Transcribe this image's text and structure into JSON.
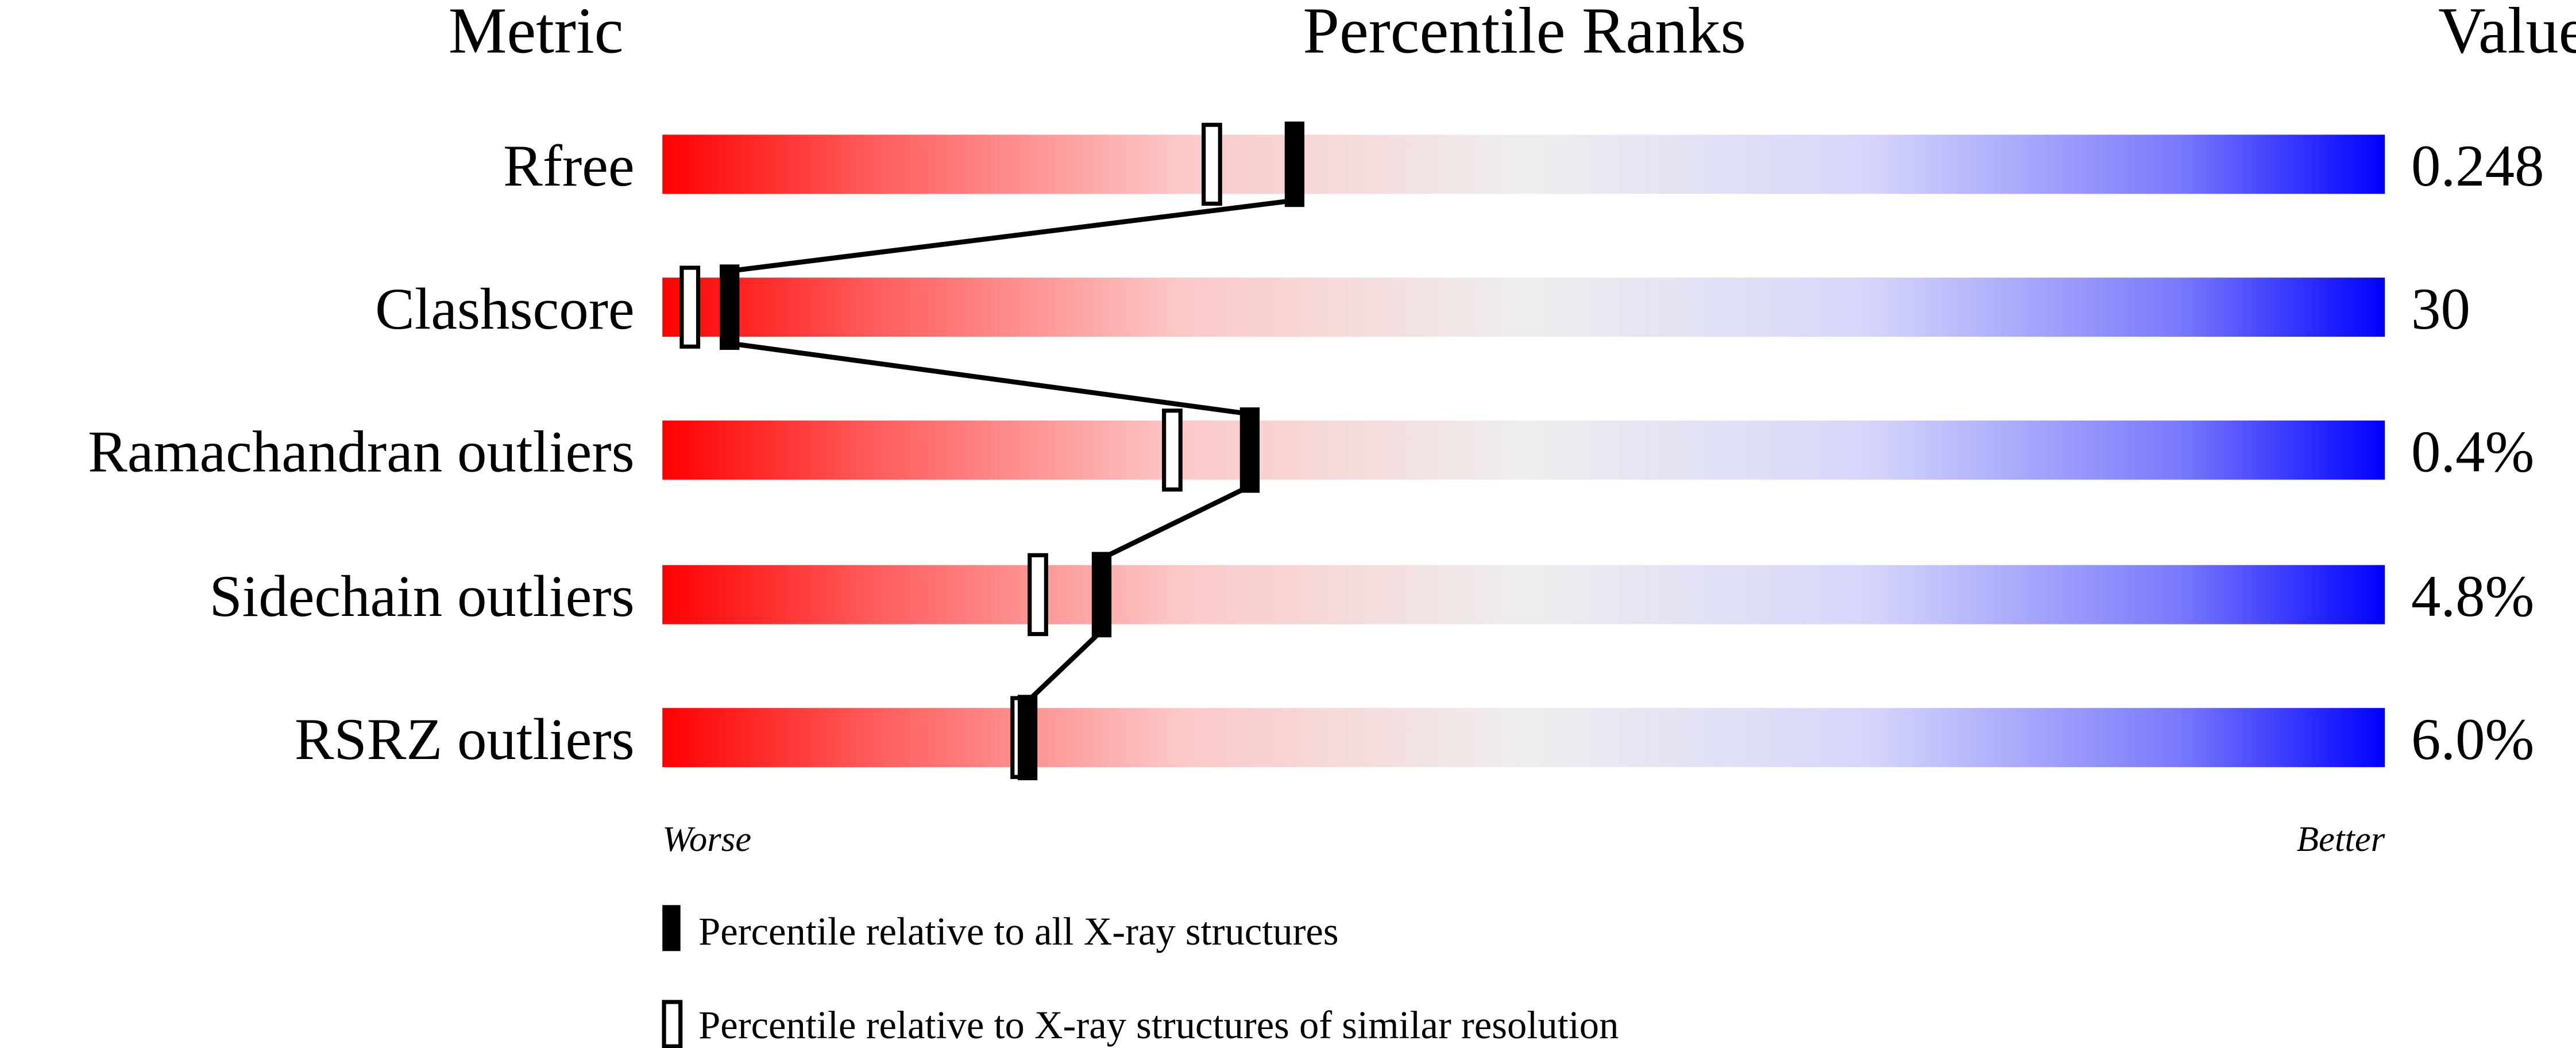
{
  "chart_data": {
    "type": "percentile-slider",
    "headers": {
      "metric": "Metric",
      "ranks": "Percentile Ranks",
      "value": "Value"
    },
    "xlim": [
      0,
      100
    ],
    "axis_labels": {
      "left": "Worse",
      "right": "Better"
    },
    "gradient_colors": [
      "#ff0000",
      "#eeeeee",
      "#0000ff"
    ],
    "rows": [
      {
        "metric": "Rfree",
        "value": "0.248",
        "percentile_all": 36.7,
        "percentile_similar": 31.9
      },
      {
        "metric": "Clashscore",
        "value": "30",
        "percentile_all": 3.9,
        "percentile_similar": 1.6
      },
      {
        "metric": "Ramachandran outliers",
        "value": "0.4%",
        "percentile_all": 34.1,
        "percentile_similar": 29.6
      },
      {
        "metric": "Sidechain outliers",
        "value": "4.8%",
        "percentile_all": 25.5,
        "percentile_similar": 21.8
      },
      {
        "metric": "RSRZ outliers",
        "value": "6.0%",
        "percentile_all": 21.2,
        "percentile_similar": 20.8
      }
    ],
    "legend": [
      {
        "marker": "filled",
        "label": "Percentile relative to all X-ray structures"
      },
      {
        "marker": "open",
        "label": "Percentile relative to X-ray structures of similar resolution"
      }
    ]
  }
}
